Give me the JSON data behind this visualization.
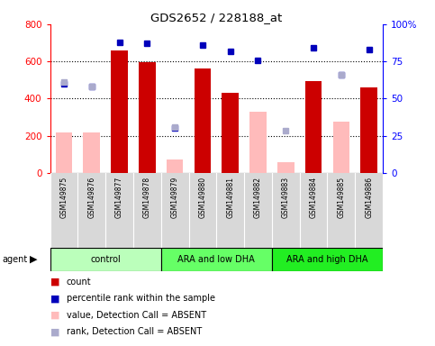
{
  "title": "GDS2652 / 228188_at",
  "samples": [
    "GSM149875",
    "GSM149876",
    "GSM149877",
    "GSM149878",
    "GSM149879",
    "GSM149880",
    "GSM149881",
    "GSM149882",
    "GSM149883",
    "GSM149884",
    "GSM149885",
    "GSM149886"
  ],
  "count_present": [
    null,
    null,
    660,
    595,
    null,
    560,
    430,
    null,
    null,
    495,
    null,
    460
  ],
  "count_absent": [
    220,
    220,
    null,
    null,
    75,
    null,
    null,
    330,
    60,
    null,
    278,
    null
  ],
  "percentile_present": [
    null,
    null,
    88,
    87,
    null,
    86,
    82,
    null,
    null,
    84,
    null,
    83
  ],
  "percentile_absent": [
    null,
    null,
    null,
    null,
    null,
    null,
    null,
    null,
    null,
    null,
    null,
    null
  ],
  "rank_absent": [
    490,
    465,
    null,
    null,
    248,
    null,
    null,
    null,
    228,
    null,
    530,
    null
  ],
  "dot_absent_y": [
    60,
    58,
    null,
    null,
    30,
    null,
    null,
    76,
    null,
    null,
    66,
    null
  ],
  "groups": [
    {
      "label": "control",
      "start": 0,
      "end": 4,
      "color": "#bbffbb"
    },
    {
      "label": "ARA and low DHA",
      "start": 4,
      "end": 8,
      "color": "#66ff66"
    },
    {
      "label": "ARA and high DHA",
      "start": 8,
      "end": 12,
      "color": "#22ee22"
    }
  ],
  "ylim_left": [
    0,
    800
  ],
  "ylim_right": [
    0,
    100
  ],
  "yticks_left": [
    0,
    200,
    400,
    600,
    800
  ],
  "yticks_right": [
    0,
    25,
    50,
    75,
    100
  ],
  "bar_color_present": "#cc0000",
  "bar_color_absent": "#ffbbbb",
  "dot_color_present": "#0000bb",
  "dot_color_absent": "#aaaacc",
  "background_color": "#ffffff"
}
